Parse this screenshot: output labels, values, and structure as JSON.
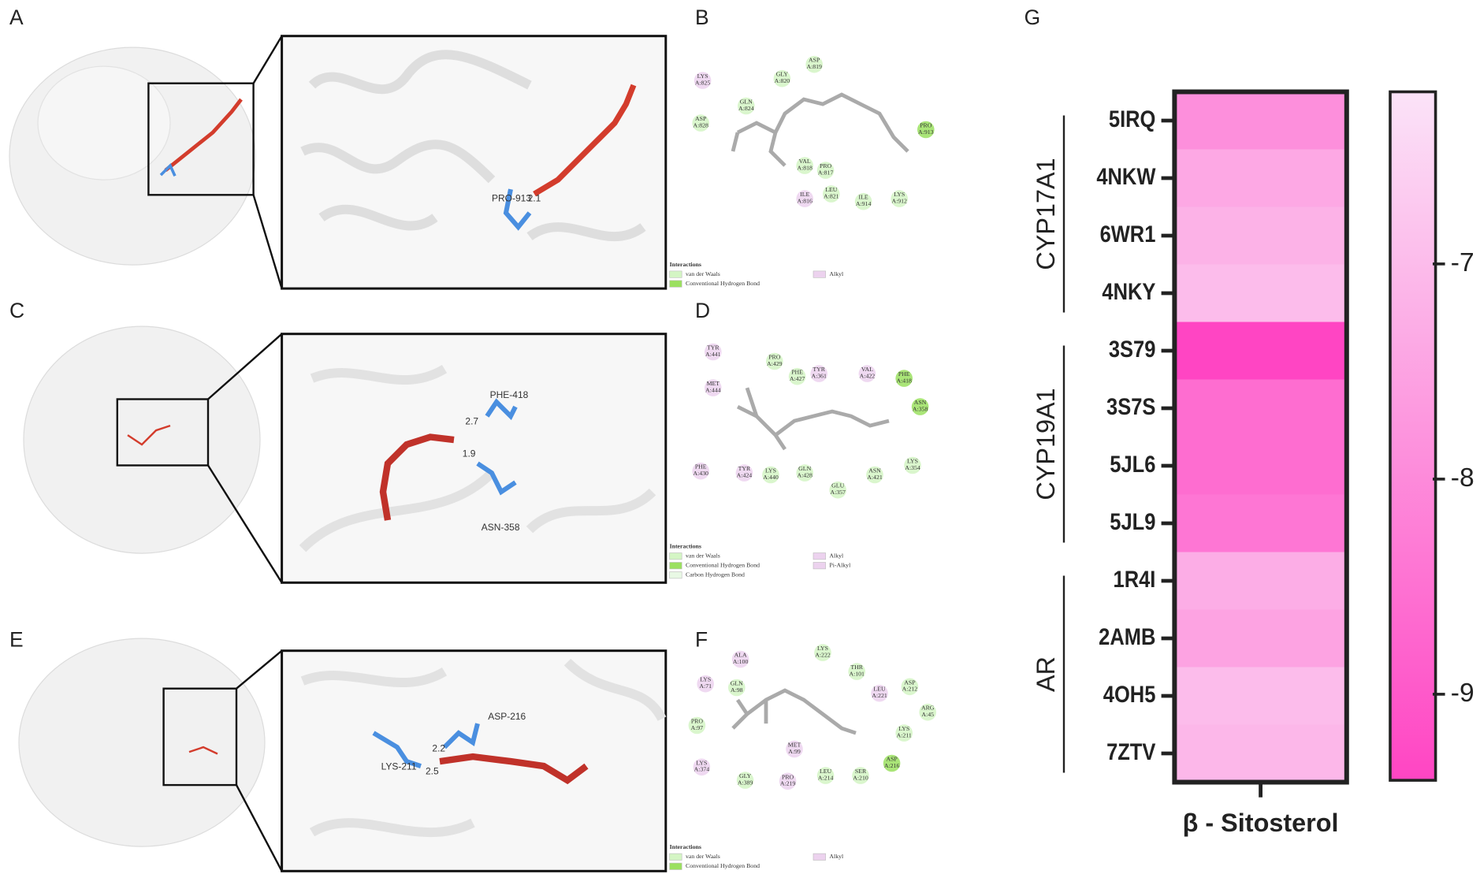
{
  "panels": [
    {
      "letter": "A",
      "labels": [
        "PRO-913",
        "2.1"
      ]
    },
    {
      "letter": "B",
      "residues": [
        {
          "name": "LYS",
          "id": "A:825",
          "color": "#ecd2ee"
        },
        {
          "name": "GLY",
          "id": "A:820",
          "color": "#d4f5c4"
        },
        {
          "name": "ASP",
          "id": "A:819",
          "color": "#d4f5c4"
        },
        {
          "name": "GLN",
          "id": "A:824",
          "color": "#d4f5c4"
        },
        {
          "name": "ASP",
          "id": "A:828",
          "color": "#d4f5c4"
        },
        {
          "name": "PRO",
          "id": "A:913",
          "color": "#9be060"
        },
        {
          "name": "VAL",
          "id": "A:818",
          "color": "#d4f5c4"
        },
        {
          "name": "PRO",
          "id": "A:817",
          "color": "#d4f5c4"
        },
        {
          "name": "ILE",
          "id": "A:816",
          "color": "#ecd2ee"
        },
        {
          "name": "LEU",
          "id": "A:821",
          "color": "#d4f5c4"
        },
        {
          "name": "ILE",
          "id": "A:914",
          "color": "#d4f5c4"
        },
        {
          "name": "LYS",
          "id": "A:912",
          "color": "#d4f5c4"
        }
      ],
      "legend_title": "Interactions",
      "legend": [
        {
          "label": "van der Waals",
          "color": "#d4f5c4"
        },
        {
          "label": "Conventional Hydrogen Bond",
          "color": "#9be060"
        },
        {
          "label": "Alkyl",
          "color": "#ecd2ee"
        }
      ]
    },
    {
      "letter": "C",
      "labels": [
        "PHE-418",
        "2.7",
        "1.9",
        "ASN-358"
      ]
    },
    {
      "letter": "D",
      "residues": [
        {
          "name": "TYR",
          "id": "A:441",
          "color": "#ecd2ee"
        },
        {
          "name": "PRO",
          "id": "A:429",
          "color": "#d4f5c4"
        },
        {
          "name": "PHE",
          "id": "A:427",
          "color": "#d4f5c4"
        },
        {
          "name": "TYR",
          "id": "A:361",
          "color": "#ecd2ee"
        },
        {
          "name": "VAL",
          "id": "A:422",
          "color": "#ecd2ee"
        },
        {
          "name": "PHE",
          "id": "A:418",
          "color": "#9be060"
        },
        {
          "name": "MET",
          "id": "A:444",
          "color": "#ecd2ee"
        },
        {
          "name": "ASN",
          "id": "A:358",
          "color": "#9be060"
        },
        {
          "name": "PHE",
          "id": "A:430",
          "color": "#ecd2ee"
        },
        {
          "name": "TYR",
          "id": "A:424",
          "color": "#ecd2ee"
        },
        {
          "name": "LYS",
          "id": "A:440",
          "color": "#d4f5c4"
        },
        {
          "name": "GLN",
          "id": "A:428",
          "color": "#d4f5c4"
        },
        {
          "name": "GLU",
          "id": "A:357",
          "color": "#d4f5c4"
        },
        {
          "name": "ASN",
          "id": "A:421",
          "color": "#d4f5c4"
        },
        {
          "name": "LYS",
          "id": "A:354",
          "color": "#d4f5c4"
        }
      ],
      "legend_title": "Interactions",
      "legend": [
        {
          "label": "van der Waals",
          "color": "#d4f5c4"
        },
        {
          "label": "Conventional Hydrogen Bond",
          "color": "#9be060"
        },
        {
          "label": "Carbon Hydrogen Bond",
          "color": "#e8f8e4"
        },
        {
          "label": "Alkyl",
          "color": "#ecd2ee"
        },
        {
          "label": "Pi-Alkyl",
          "color": "#ecd2ee"
        }
      ]
    },
    {
      "letter": "E",
      "labels": [
        "ASP-216",
        "LYS-211",
        "2.2",
        "2.5"
      ]
    },
    {
      "letter": "F",
      "residues": [
        {
          "name": "ALA",
          "id": "A:100",
          "color": "#ecd2ee"
        },
        {
          "name": "LYS",
          "id": "A:222",
          "color": "#d4f5c4"
        },
        {
          "name": "THR",
          "id": "A:101",
          "color": "#d4f5c4"
        },
        {
          "name": "LYS",
          "id": "A:71",
          "color": "#ecd2ee"
        },
        {
          "name": "GLN",
          "id": "A:98",
          "color": "#d4f5c4"
        },
        {
          "name": "LEU",
          "id": "A:221",
          "color": "#ecd2ee"
        },
        {
          "name": "ASP",
          "id": "A:212",
          "color": "#d4f5c4"
        },
        {
          "name": "ARG",
          "id": "A:45",
          "color": "#d4f5c4"
        },
        {
          "name": "PRO",
          "id": "A:97",
          "color": "#d4f5c4"
        },
        {
          "name": "LYS",
          "id": "A:211",
          "color": "#d4f5c4"
        },
        {
          "name": "MET",
          "id": "A:99",
          "color": "#ecd2ee"
        },
        {
          "name": "ASP",
          "id": "A:216",
          "color": "#9be060"
        },
        {
          "name": "LYS",
          "id": "A:374",
          "color": "#ecd2ee"
        },
        {
          "name": "GLY",
          "id": "A:389",
          "color": "#d4f5c4"
        },
        {
          "name": "PRO",
          "id": "A:219",
          "color": "#ecd2ee"
        },
        {
          "name": "LEU",
          "id": "A:214",
          "color": "#d4f5c4"
        },
        {
          "name": "SER",
          "id": "A:210",
          "color": "#d4f5c4"
        }
      ],
      "legend_title": "Interactions",
      "legend": [
        {
          "label": "van der Waals",
          "color": "#d4f5c4"
        },
        {
          "label": "Conventional Hydrogen Bond",
          "color": "#9be060"
        },
        {
          "label": "Alkyl",
          "color": "#ecd2ee"
        }
      ]
    }
  ],
  "chart_data": {
    "type": "heatmap",
    "letter": "G",
    "column": "β - Sitosterol",
    "groups": [
      {
        "name": "CYP17A1",
        "categories": [
          "5IRQ",
          "4NKW",
          "6WR1",
          "4NKY"
        ],
        "values": [
          -7.9,
          -7.4,
          -7.2,
          -7.0
        ]
      },
      {
        "name": "CYP19A1",
        "categories": [
          "3S79",
          "3S7S",
          "5JL6",
          "5JL9"
        ],
        "values": [
          -9.4,
          -8.6,
          -8.6,
          -8.4
        ]
      },
      {
        "name": "AR",
        "categories": [
          "1R4I",
          "2AMB",
          "4OH5",
          "7ZTV"
        ],
        "values": [
          -7.3,
          -7.5,
          -7.0,
          -7.1
        ]
      }
    ],
    "colormap": [
      "#ff45c3",
      "#fbe3f8"
    ],
    "clim": [
      -9.4,
      -6.2
    ],
    "cticks": [
      -7,
      -8,
      -9
    ]
  }
}
